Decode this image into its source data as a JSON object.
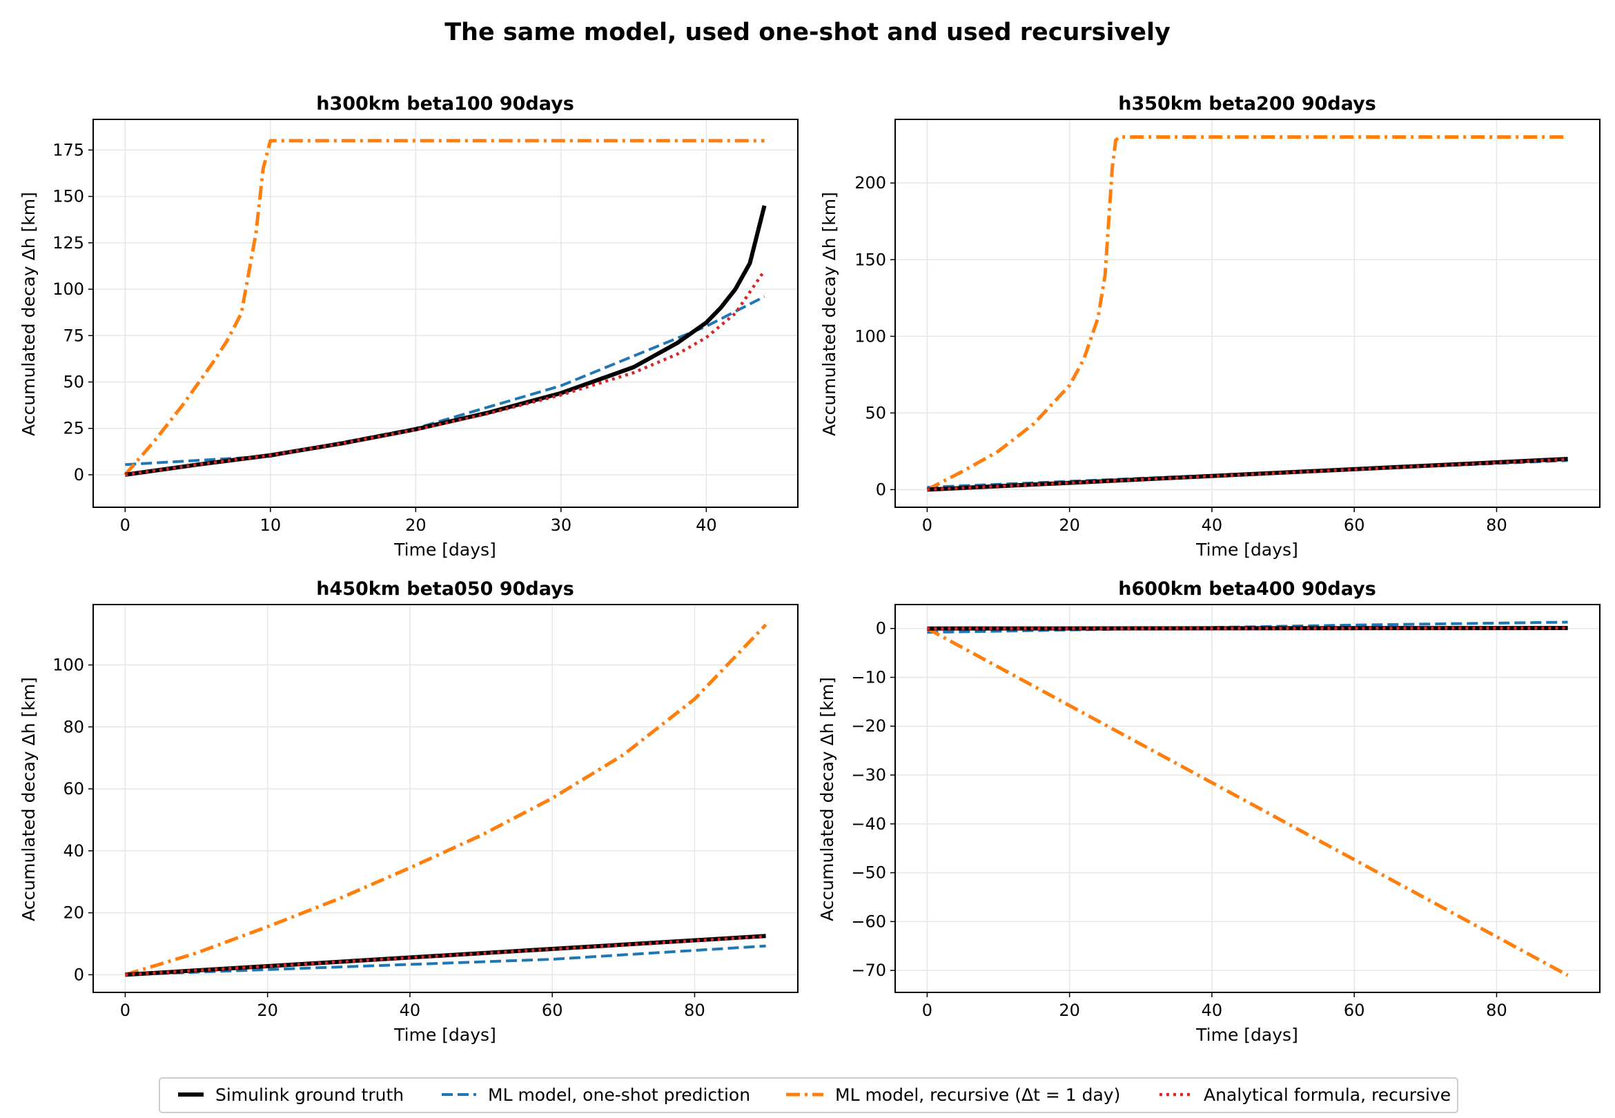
{
  "figure_title": "The same model, used one-shot and used recursively",
  "legend": [
    {
      "label": "Simulink ground truth",
      "color": "#000000",
      "dash": "solid",
      "width": 6
    },
    {
      "label": "ML model, one-shot prediction",
      "color": "#1f77b4",
      "dash": "dashed",
      "width": 4
    },
    {
      "label": "ML model, recursive (Δt = 1 day)",
      "color": "#ff7f0e",
      "dash": "dashdot",
      "width": 5
    },
    {
      "label": "Analytical formula, recursive",
      "color": "#d62728",
      "dash": "dotted",
      "width": 4.5
    }
  ],
  "chart_data": [
    {
      "type": "line",
      "title": "h300km beta100 90days",
      "xlabel": "Time [days]",
      "ylabel": "Accumulated decay Δh [km]",
      "xlim": [
        -2.2,
        46.3
      ],
      "ylim": [
        -17.5,
        191.5
      ],
      "xticks": [
        0,
        10,
        20,
        30,
        40
      ],
      "yticks": [
        0,
        25,
        50,
        75,
        100,
        125,
        150,
        175
      ],
      "grid": true,
      "series": [
        {
          "name": "Simulink ground truth",
          "x": [
            0,
            5,
            10,
            15,
            20,
            25,
            30,
            35,
            38,
            40,
            41,
            42,
            43,
            44
          ],
          "y": [
            0,
            5.5,
            10.5,
            17,
            24.5,
            33.5,
            44,
            58,
            71,
            82,
            90,
            100,
            114,
            145
          ]
        },
        {
          "name": "ML model, one-shot prediction",
          "x": [
            0,
            10,
            20,
            30,
            40,
            44
          ],
          "y": [
            5.5,
            10,
            25,
            48,
            80,
            96
          ]
        },
        {
          "name": "ML model, recursive (Δt = 1 day)",
          "x": [
            0,
            2,
            4,
            6,
            7,
            8,
            9,
            9.5,
            10,
            44
          ],
          "y": [
            0,
            18,
            38,
            60,
            72,
            87,
            130,
            165,
            180,
            180
          ]
        },
        {
          "name": "Analytical formula, recursive",
          "x": [
            0,
            5,
            10,
            15,
            20,
            25,
            30,
            35,
            38,
            40,
            42,
            44
          ],
          "y": [
            0,
            5.5,
            10.5,
            17,
            24.3,
            33,
            43,
            55,
            65,
            74,
            87,
            110
          ]
        }
      ]
    },
    {
      "type": "line",
      "title": "h350km beta200 90days",
      "xlabel": "Time [days]",
      "ylabel": "Accumulated decay Δh [km]",
      "xlim": [
        -4.5,
        94.5
      ],
      "ylim": [
        -11.5,
        241.5
      ],
      "xticks": [
        0,
        20,
        40,
        60,
        80
      ],
      "yticks": [
        0,
        50,
        100,
        150,
        200
      ],
      "grid": true,
      "series": [
        {
          "name": "Simulink ground truth",
          "x": [
            0,
            90
          ],
          "y": [
            0,
            20
          ]
        },
        {
          "name": "ML model, one-shot prediction",
          "x": [
            0,
            90
          ],
          "y": [
            1.5,
            19
          ]
        },
        {
          "name": "ML model, recursive (Δt = 1 day)",
          "x": [
            0,
            5,
            10,
            15,
            20,
            22,
            24,
            25,
            25.5,
            26,
            26.5,
            27,
            90
          ],
          "y": [
            0,
            12,
            25,
            43,
            68,
            85,
            112,
            140,
            175,
            210,
            228,
            230,
            230
          ]
        },
        {
          "name": "Analytical formula, recursive",
          "x": [
            0,
            90
          ],
          "y": [
            0,
            19.8
          ]
        }
      ]
    },
    {
      "type": "line",
      "title": "h450km beta050 90days",
      "xlabel": "Time [days]",
      "ylabel": "Accumulated decay Δh [km]",
      "xlim": [
        -4.5,
        94.5
      ],
      "ylim": [
        -5.7,
        119.5
      ],
      "xticks": [
        0,
        20,
        40,
        60,
        80
      ],
      "yticks": [
        0,
        20,
        40,
        60,
        80,
        100
      ],
      "grid": true,
      "series": [
        {
          "name": "Simulink ground truth",
          "x": [
            0,
            90
          ],
          "y": [
            0,
            12.5
          ]
        },
        {
          "name": "ML model, one-shot prediction",
          "x": [
            0,
            30,
            60,
            90
          ],
          "y": [
            0,
            2.5,
            5,
            9.3
          ]
        },
        {
          "name": "ML model, recursive (Δt = 1 day)",
          "x": [
            0,
            10,
            20,
            30,
            40,
            50,
            60,
            70,
            80,
            90
          ],
          "y": [
            0,
            7,
            15.5,
            24.5,
            34.5,
            45,
            57,
            71,
            89,
            113
          ]
        },
        {
          "name": "Analytical formula, recursive",
          "x": [
            0,
            90
          ],
          "y": [
            0,
            12.4
          ]
        }
      ]
    },
    {
      "type": "line",
      "title": "h600km beta400 90days",
      "xlabel": "Time [days]",
      "ylabel": "Accumulated decay Δh [km]",
      "xlim": [
        -4.5,
        94.5
      ],
      "ylim": [
        -74.5,
        4.9
      ],
      "xticks": [
        0,
        20,
        40,
        60,
        80
      ],
      "yticks": [
        0,
        -10,
        -20,
        -30,
        -40,
        -50,
        -60,
        -70
      ],
      "grid": true,
      "series": [
        {
          "name": "Simulink ground truth",
          "x": [
            0,
            90
          ],
          "y": [
            0,
            0.1
          ]
        },
        {
          "name": "ML model, one-shot prediction",
          "x": [
            0,
            20,
            40,
            60,
            80,
            90
          ],
          "y": [
            -0.8,
            -0.3,
            0.2,
            0.7,
            1.1,
            1.3
          ]
        },
        {
          "name": "ML model, recursive (Δt = 1 day)",
          "x": [
            0,
            90
          ],
          "y": [
            0,
            -71
          ]
        },
        {
          "name": "Analytical formula, recursive",
          "x": [
            0,
            90
          ],
          "y": [
            0,
            0.05
          ]
        }
      ]
    }
  ]
}
